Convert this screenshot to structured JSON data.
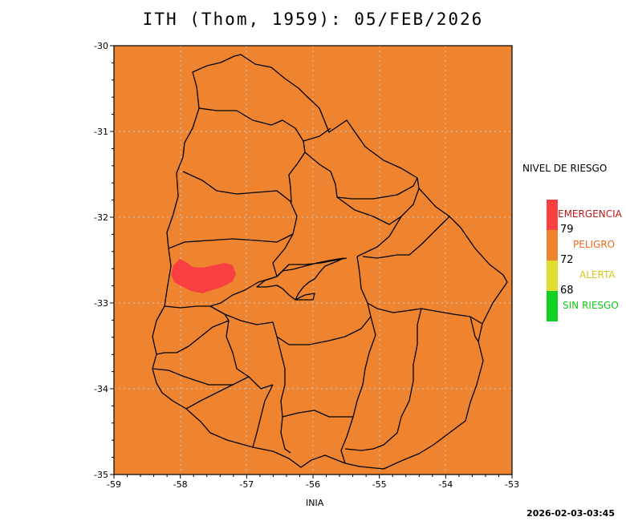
{
  "title": "ITH (Thom, 1959): 05/FEB/2026",
  "map": {
    "lon_range": [
      -59,
      -53
    ],
    "lat_range": [
      -35,
      -30
    ],
    "lon_ticks": [
      "-59",
      "-58",
      "-57",
      "-56",
      "-55",
      "-54",
      "-53"
    ],
    "lat_ticks": [
      "-30",
      "-31",
      "-32",
      "-33",
      "-34",
      "-35"
    ],
    "background_level": "PELIGRO",
    "hotspot_level": "EMERGENCIA",
    "grid": true
  },
  "legend": {
    "title": "NIVEL DE RIESGO",
    "levels": [
      {
        "label": "EMERGENCIA",
        "color": "#f84040",
        "label_color": "#c01818"
      },
      {
        "label": "PELIGRO",
        "color": "#ee8430",
        "label_color": "#ee6a1e"
      },
      {
        "label": "ALERTA",
        "color": "#e0dc34",
        "label_color": "#dcc61e"
      },
      {
        "label": "SIN RIESGO",
        "color": "#10d020",
        "label_color": "#12c818"
      }
    ],
    "thresholds": [
      "79",
      "72",
      "68"
    ]
  },
  "source": "INIA",
  "timestamp": "2026-02-03-03:45",
  "colors": {
    "map_fill": "#ee8430",
    "hotspot": "#f84040",
    "grid": "#c8c8c8"
  }
}
